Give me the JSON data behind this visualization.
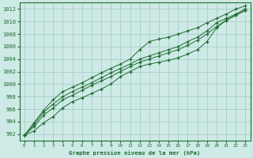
{
  "xlabel": "Graphe pression niveau de la mer (hPa)",
  "xlim_min": -0.5,
  "xlim_max": 23.5,
  "ylim_min": 991.0,
  "ylim_max": 1013.0,
  "yticks": [
    992,
    994,
    996,
    998,
    1000,
    1002,
    1004,
    1006,
    1008,
    1010,
    1012
  ],
  "xticks": [
    0,
    1,
    2,
    3,
    4,
    5,
    6,
    7,
    8,
    9,
    10,
    11,
    12,
    13,
    14,
    15,
    16,
    17,
    18,
    19,
    20,
    21,
    22,
    23
  ],
  "bg_color": "#ceeae6",
  "line_color": "#1e6b30",
  "grid_color": "#a0c8c4",
  "lines": [
    [
      991.8,
      992.5,
      993.8,
      994.8,
      996.2,
      997.2,
      997.8,
      998.5,
      999.2,
      1000.0,
      1001.2,
      1002.0,
      1002.8,
      1003.2,
      1003.5,
      1003.8,
      1004.2,
      1004.8,
      1005.5,
      1006.8,
      1009.0,
      1010.2,
      1011.0,
      1011.8
    ],
    [
      991.8,
      993.2,
      995.0,
      996.2,
      997.5,
      998.2,
      999.0,
      999.8,
      1000.5,
      1001.2,
      1002.0,
      1002.8,
      1003.5,
      1004.0,
      1004.5,
      1005.0,
      1005.5,
      1006.2,
      1007.0,
      1008.0,
      1009.2,
      1010.2,
      1011.0,
      1011.8
    ],
    [
      991.8,
      993.5,
      995.5,
      996.8,
      998.0,
      998.8,
      999.5,
      1000.2,
      1001.0,
      1001.8,
      1002.5,
      1003.2,
      1004.0,
      1004.5,
      1005.0,
      1005.5,
      1006.0,
      1006.8,
      1007.5,
      1008.5,
      1009.8,
      1010.5,
      1011.2,
      1012.0
    ],
    [
      991.8,
      993.8,
      995.8,
      997.5,
      998.8,
      999.5,
      1000.2,
      1001.0,
      1001.8,
      1002.5,
      1003.2,
      1004.0,
      1005.5,
      1006.8,
      1007.2,
      1007.5,
      1008.0,
      1008.5,
      1009.0,
      1009.8,
      1010.5,
      1011.2,
      1012.0,
      1012.5
    ]
  ]
}
